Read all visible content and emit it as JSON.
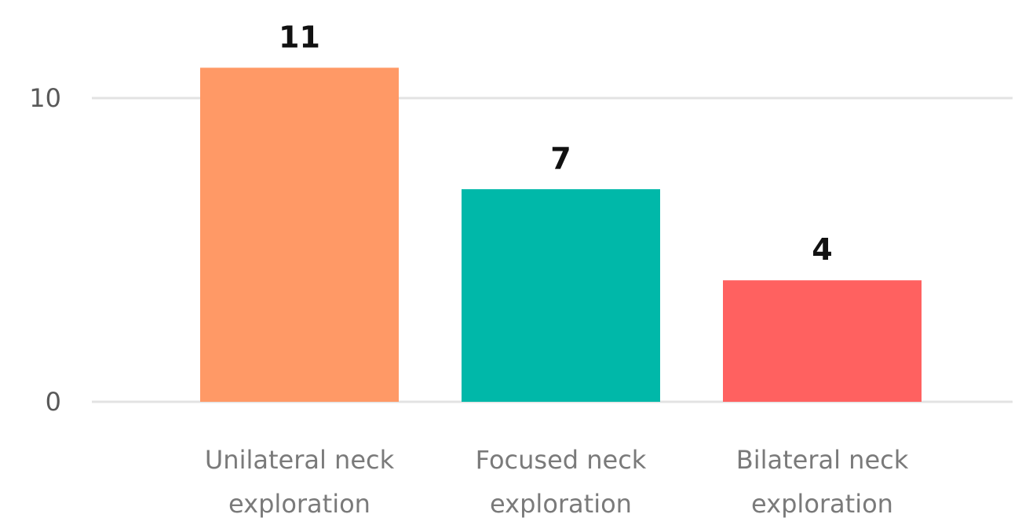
{
  "chart_data": {
    "type": "bar",
    "title": "",
    "xlabel": "",
    "ylabel": "",
    "categories": [
      [
        "Unilateral neck",
        "exploration"
      ],
      [
        "Focused neck",
        "exploration"
      ],
      [
        "Bilateral neck",
        "exploration"
      ]
    ],
    "values": [
      11,
      7,
      4
    ],
    "data_labels": [
      "11",
      "7",
      "4"
    ],
    "colors": [
      "#FF9966",
      "#00B8A9",
      "#FF6160"
    ],
    "yticks": [
      0,
      10
    ],
    "ylim": [
      0,
      12
    ],
    "grid": true,
    "legend": "none"
  }
}
